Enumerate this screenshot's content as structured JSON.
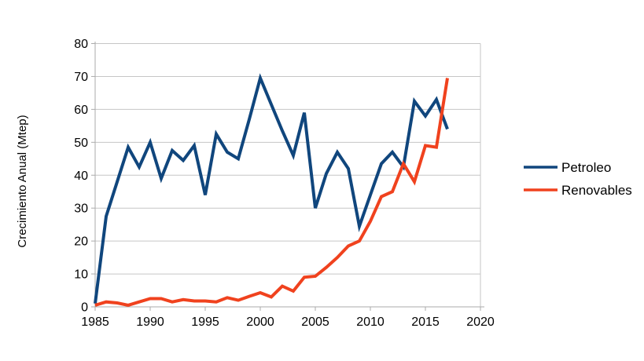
{
  "chart_data": {
    "type": "line",
    "title": "",
    "xlabel": "",
    "ylabel": "Crecimiento Anual (Mtep)",
    "xlim": [
      1985,
      2020
    ],
    "ylim": [
      0,
      80
    ],
    "x_ticks": [
      1985,
      1990,
      1995,
      2000,
      2005,
      2010,
      2015,
      2020
    ],
    "y_ticks": [
      0,
      10,
      20,
      30,
      40,
      50,
      60,
      70,
      80
    ],
    "grid": "horizontal",
    "legend_position": "right",
    "x": [
      1985,
      1986,
      1987,
      1988,
      1989,
      1990,
      1991,
      1992,
      1993,
      1994,
      1995,
      1996,
      1997,
      1998,
      1999,
      2000,
      2001,
      2002,
      2003,
      2004,
      2005,
      2006,
      2007,
      2008,
      2009,
      2010,
      2011,
      2012,
      2013,
      2014,
      2015,
      2016,
      2017
    ],
    "series": [
      {
        "name": "Petroleo",
        "color": "#10467D",
        "values": [
          1,
          27.5,
          38,
          48.5,
          42.5,
          50,
          39,
          47.5,
          44.5,
          49,
          34,
          52.5,
          47,
          45,
          57,
          69.5,
          61.5,
          53.5,
          46,
          59,
          30,
          40.5,
          47,
          42,
          24.5,
          34,
          43.5,
          47,
          42.5,
          62.5,
          58,
          63,
          54
        ]
      },
      {
        "name": "Renovables",
        "color": "#F0421E",
        "values": [
          0.5,
          1.5,
          1.2,
          0.5,
          1.5,
          2.5,
          2.5,
          1.5,
          2.2,
          1.8,
          1.8,
          1.5,
          2.8,
          2,
          3.2,
          4.3,
          3,
          6.3,
          4.8,
          9,
          9.3,
          12,
          15,
          18.5,
          20,
          26,
          33.5,
          35,
          43.5,
          38,
          49,
          48.5,
          69.5
        ]
      }
    ]
  },
  "colors": {
    "background": "#FFFFFF",
    "gridline": "#C6C6C6",
    "axis": "#ABABAB",
    "text": "#000000"
  }
}
